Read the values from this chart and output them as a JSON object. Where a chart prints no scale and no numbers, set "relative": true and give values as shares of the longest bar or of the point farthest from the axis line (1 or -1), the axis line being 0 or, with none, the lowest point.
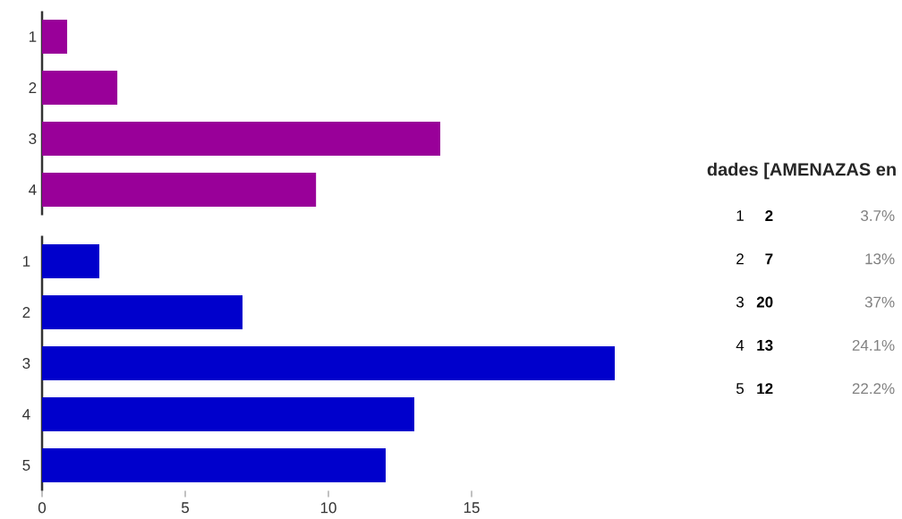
{
  "chart_data": [
    {
      "type": "bar",
      "orientation": "horizontal",
      "relative": true,
      "categories": [
        "1",
        "2",
        "3",
        "4"
      ],
      "values": [
        0.063,
        0.189,
        1,
        0.688
      ],
      "color": "#990099"
    },
    {
      "type": "bar",
      "orientation": "horizontal",
      "categories": [
        "1",
        "2",
        "3",
        "4",
        "5"
      ],
      "values": [
        2,
        7,
        20,
        13,
        12
      ],
      "color": "#0000cc",
      "xlim": [
        0,
        20
      ],
      "xticks": [
        0,
        5,
        10,
        15
      ],
      "annotations": [
        "dades [AMENAZAS en",
        "1",
        "**2**",
        "3.7%",
        "2",
        "**7**",
        "13%",
        "3",
        "**20**",
        "37%",
        "4",
        "**13**",
        "24.1%",
        "5",
        "**12**",
        "22.2%"
      ]
    }
  ]
}
